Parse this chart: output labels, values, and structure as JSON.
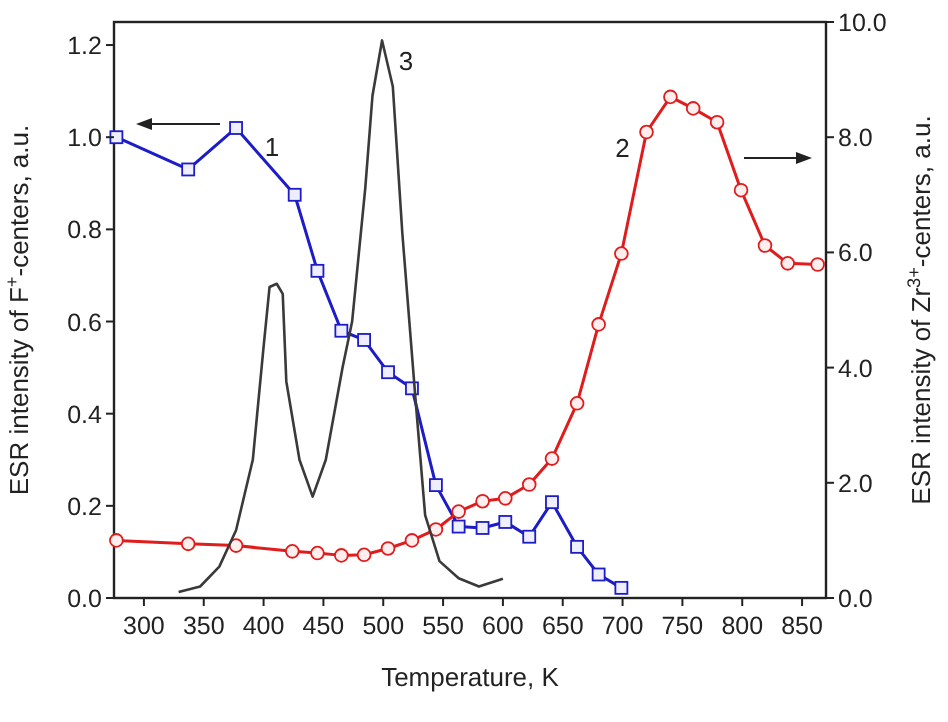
{
  "chart_data": {
    "type": "line",
    "xlabel": "Temperature, K",
    "ylabel": "ESR intensity of F$^{+}$-centers, a.u.",
    "y2label": "ESR intensity of Zr$^{3+}$-centers, a.u.",
    "xlim": [
      275,
      870
    ],
    "xticks": [
      300,
      350,
      400,
      450,
      500,
      550,
      600,
      650,
      700,
      750,
      800,
      850
    ],
    "ylim": [
      0,
      1.25
    ],
    "yticks": [
      {
        "value": 0,
        "label": "0.0"
      },
      {
        "value": 0.2,
        "label": "0.2"
      },
      {
        "value": 0.4,
        "label": "0.4"
      },
      {
        "value": 0.6,
        "label": "0.6"
      },
      {
        "value": 0.8,
        "label": "0.8"
      },
      {
        "value": 1.0,
        "label": "1.0"
      },
      {
        "value": 1.2,
        "label": "1.2"
      }
    ],
    "y2lim": [
      0,
      10
    ],
    "y2ticks": [
      {
        "value": 0,
        "label": "0.0"
      },
      {
        "value": 2,
        "label": "2.0"
      },
      {
        "value": 4,
        "label": "4.0"
      },
      {
        "value": 6,
        "label": "6.0"
      },
      {
        "value": 8,
        "label": "8.0"
      },
      {
        "value": 10,
        "label": "10.0"
      }
    ],
    "grid": false,
    "series": [
      {
        "color": "#1c1cc8",
        "marker": "square",
        "x": [
          277,
          337,
          377,
          426,
          445,
          465,
          484,
          504,
          524,
          544,
          563,
          583,
          602,
          622,
          641,
          662,
          680,
          699
        ],
        "values": [
          1.0,
          0.93,
          1.02,
          0.875,
          0.71,
          0.58,
          0.56,
          0.49,
          0.455,
          0.245,
          0.155,
          0.152,
          0.165,
          0.133,
          0.208,
          0.111,
          0.051,
          0.022
        ]
      },
      {
        "color": "#e01c1c",
        "marker": "circle",
        "axis": "y2",
        "x": [
          277,
          337,
          377,
          424,
          445,
          465,
          484,
          504,
          524,
          544,
          563,
          583,
          602,
          622,
          641,
          662,
          680,
          699,
          720,
          740,
          759,
          779,
          799,
          819,
          838,
          863
        ],
        "values": [
          1.0,
          0.94,
          0.91,
          0.81,
          0.78,
          0.74,
          0.75,
          0.86,
          1.0,
          1.19,
          1.5,
          1.68,
          1.73,
          1.97,
          2.42,
          3.38,
          4.75,
          5.98,
          8.09,
          8.7,
          8.5,
          8.26,
          7.08,
          6.12,
          5.81,
          5.79
        ]
      },
      {
        "color": "#3a3a3a",
        "marker": "none",
        "x": [
          329,
          347,
          363,
          377,
          391,
          400,
          405,
          411,
          416,
          419,
          430,
          441,
          452,
          466,
          474,
          485,
          491,
          499,
          508,
          516,
          527,
          535,
          547,
          563,
          580,
          600
        ],
        "values": [
          0.013,
          0.025,
          0.068,
          0.147,
          0.3,
          0.545,
          0.675,
          0.682,
          0.66,
          0.47,
          0.3,
          0.22,
          0.3,
          0.5,
          0.6,
          0.89,
          1.09,
          1.21,
          1.11,
          0.79,
          0.43,
          0.18,
          0.08,
          0.043,
          0.025,
          0.042
        ]
      }
    ],
    "annotations": [
      "1",
      "2",
      "3"
    ]
  }
}
